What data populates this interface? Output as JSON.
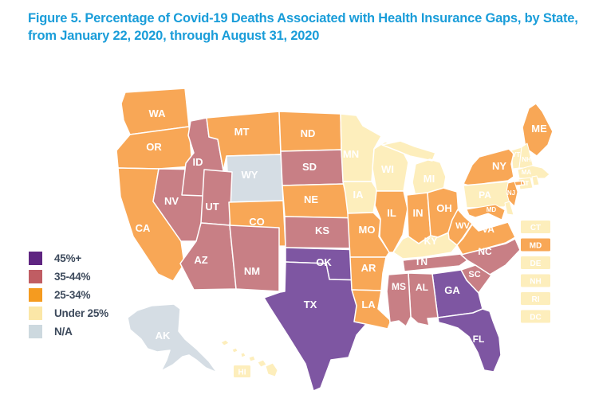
{
  "figure": {
    "title_line1": "Figure 5. Percentage of Covid-19 Deaths Associated with Health Insurance Gaps, by State,",
    "title_line2": "from January 22, 2020, through August 31, 2020"
  },
  "colors": {
    "title_blue": "#1a9dd9",
    "legend_text": "#3d4a5c",
    "background": "#ffffff",
    "state_border": "#ffffff",
    "state_label": "#ffffff",
    "categories": {
      "45plus": {
        "legend": "#5f2581",
        "map": "#7e56a2"
      },
      "35to44": {
        "legend": "#c05d63",
        "map": "#c87f85"
      },
      "25to34": {
        "legend": "#f59b1f",
        "map": "#f8a756"
      },
      "under25": {
        "legend": "#fbe7a7",
        "map": "#fdeebc"
      },
      "na": {
        "legend": "#cdd9df",
        "map": "#d5dde4"
      }
    }
  },
  "legend": {
    "items": [
      {
        "label": "45%+",
        "key": "45plus"
      },
      {
        "label": "35-44%",
        "key": "35to44"
      },
      {
        "label": "25-34%",
        "key": "25to34"
      },
      {
        "label": "Under 25%",
        "key": "under25"
      },
      {
        "label": "N/A",
        "key": "na"
      }
    ]
  },
  "map": {
    "inset_boxes": [
      "CT",
      "MD",
      "DE",
      "NH",
      "RI",
      "DC"
    ],
    "hawaii_label": "HI"
  },
  "chart_data": {
    "type": "heatmap",
    "subtype": "us_state_choropleth",
    "title": "Figure 5. Percentage of Covid-19 Deaths Associated with Health Insurance Gaps, by State, from January 22, 2020, through August 31, 2020",
    "legend_entries": [
      "45%+",
      "35-44%",
      "25-34%",
      "Under 25%",
      "N/A"
    ],
    "legend_position": "left",
    "values_by_state": {
      "WA": "25-34%",
      "OR": "25-34%",
      "CA": "25-34%",
      "NV": "35-44%",
      "ID": "35-44%",
      "MT": "25-34%",
      "WY": "N/A",
      "UT": "35-44%",
      "CO": "25-34%",
      "AZ": "35-44%",
      "NM": "35-44%",
      "ND": "25-34%",
      "SD": "35-44%",
      "NE": "25-34%",
      "KS": "35-44%",
      "OK": "45%+",
      "TX": "45%+",
      "MN": "Under 25%",
      "IA": "Under 25%",
      "MO": "25-34%",
      "AR": "25-34%",
      "LA": "25-34%",
      "WI": "Under 25%",
      "IL": "25-34%",
      "MI": "Under 25%",
      "IN": "25-34%",
      "OH": "25-34%",
      "KY": "Under 25%",
      "TN": "35-44%",
      "WV": "25-34%",
      "VA": "25-34%",
      "NC": "35-44%",
      "SC": "35-44%",
      "GA": "45%+",
      "AL": "35-44%",
      "MS": "35-44%",
      "FL": "45%+",
      "ME": "25-34%",
      "VT": "Under 25%",
      "NH": "Under 25%",
      "MA": "Under 25%",
      "CT": "Under 25%",
      "RI": "Under 25%",
      "NY": "25-34%",
      "PA": "Under 25%",
      "NJ": "25-34%",
      "MD": "25-34%",
      "DE": "Under 25%",
      "DC": "Under 25%",
      "AK": "N/A",
      "HI": "Under 25%"
    }
  }
}
